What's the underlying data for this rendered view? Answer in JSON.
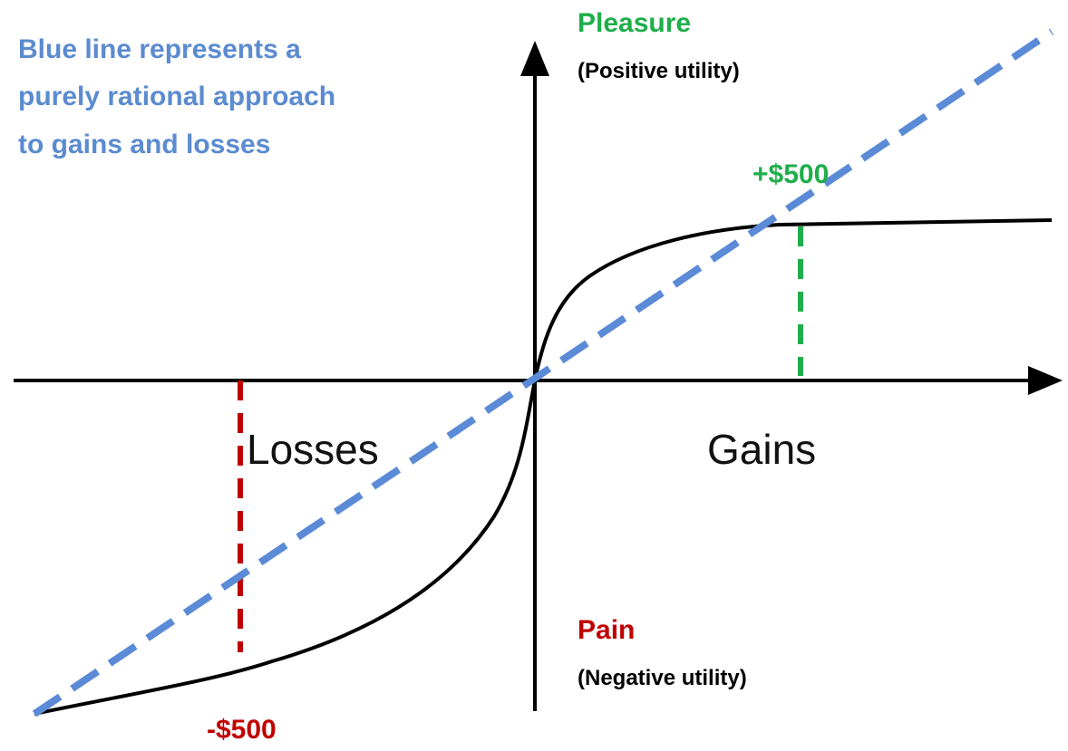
{
  "annotation": {
    "lines": [
      "Blue line represents a",
      "purely rational approach",
      "to gains and losses"
    ]
  },
  "y_axis": {
    "top_label": "Pleasure",
    "top_sublabel": "(Positive utility)",
    "bottom_label": "Pain",
    "bottom_sublabel": "(Negative utility)"
  },
  "x_axis": {
    "left_label": "Losses",
    "right_label": "Gains"
  },
  "markers": {
    "gain": "+$500",
    "loss": "-$500"
  }
}
